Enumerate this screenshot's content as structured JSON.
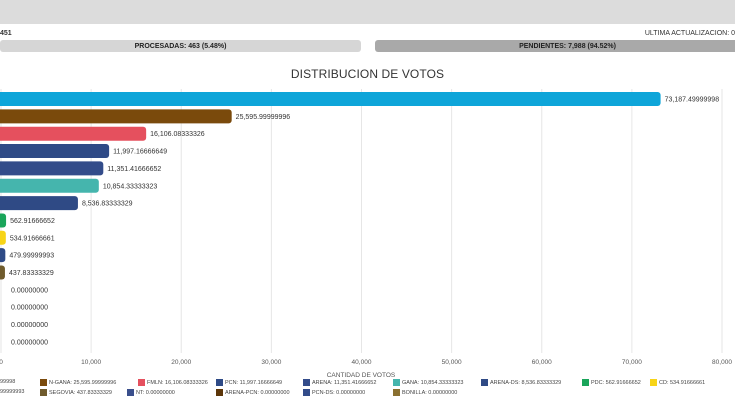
{
  "header": {
    "counter_text": "451",
    "update_text": "ULTIMA ACTUALIZACION: 0",
    "processed_label": "PROCESADAS: 463 (5.48%)",
    "pending_label": "PENDIENTES: 7,988 (94.52%)"
  },
  "chart_data": {
    "type": "bar",
    "orientation": "horizontal",
    "title": "DISTRIBUCION DE VOTOS",
    "xlabel": "CANTIDAD DE VOTOS",
    "ylabel": "",
    "xlim": [
      0,
      80000
    ],
    "xticks": [
      "0",
      "10,000",
      "20,000",
      "30,000",
      "40,000",
      "50,000",
      "60,000",
      "70,000",
      "80,000"
    ],
    "grid": true,
    "legend_position": "bottom",
    "categories": [
      "",
      "N-GANA",
      "FMLN",
      "PCN",
      "ARENA",
      "GANA",
      "ARENA-DS",
      "PDC",
      "CD",
      "",
      "SEGOVIA",
      "NT",
      "ARENA-PCN",
      "PCN-DS",
      "BONILLA"
    ],
    "values": [
      73187.49999998,
      25595.99999996,
      16106.08333326,
      11997.16666649,
      11351.41666652,
      10854.33333323,
      8536.83333329,
      562.91666652,
      534.91666661,
      479.99999993,
      437.83333329,
      0,
      0,
      0,
      0
    ],
    "value_labels": [
      "73,187.49999998",
      "25,595.99999996",
      "16,106.08333326",
      "11,997.16666649",
      "11,351.41666652",
      "10,854.33333323",
      "8,536.83333329",
      "562.91666652",
      "534.91666661",
      "479.99999993",
      "437.83333329",
      "0.00000000",
      "0.00000000",
      "0.00000000",
      "0.00000000"
    ],
    "colors": [
      "#0ea5d9",
      "#7a4a0c",
      "#e5505e",
      "#2e4a86",
      "#334c8a",
      "#45b5ad",
      "#2f4a85",
      "#1aa55a",
      "#f7d417",
      "#2e4a86",
      "#6f5b2d",
      "#3a4f8c",
      "#5c3609",
      "#334c8a",
      "#8a7030"
    ],
    "legend": [
      {
        "text": "99998",
        "color": "#0ea5d9"
      },
      {
        "text": "N-GANA: 25,595.99999996",
        "color": "#7a4a0c"
      },
      {
        "text": "FMLN: 16,106.08333326",
        "color": "#e5505e"
      },
      {
        "text": "PCN: 11,997.16666649",
        "color": "#2e4a86"
      },
      {
        "text": "ARENA: 11,351.41666652",
        "color": "#334c8a"
      },
      {
        "text": "GANA: 10,854.33333323",
        "color": "#45b5ad"
      },
      {
        "text": "ARENA-DS: 8,536.83333329",
        "color": "#2f4a85"
      },
      {
        "text": "PDC: 562.91666652",
        "color": "#1aa55a"
      },
      {
        "text": "CD: 534.91666661",
        "color": "#f7d417"
      },
      {
        "text": "99999993",
        "color": "#2e4a86"
      },
      {
        "text": "SEGOVIA: 437.83333329",
        "color": "#6f5b2d"
      },
      {
        "text": "NT: 0.00000000",
        "color": "#3a4f8c"
      },
      {
        "text": "ARENA-PCN: 0.00000000",
        "color": "#5c3609"
      },
      {
        "text": "PCN-DS: 0.00000000",
        "color": "#334c8a"
      },
      {
        "text": "BONILLA: 0.00000000",
        "color": "#8a7030"
      }
    ]
  }
}
